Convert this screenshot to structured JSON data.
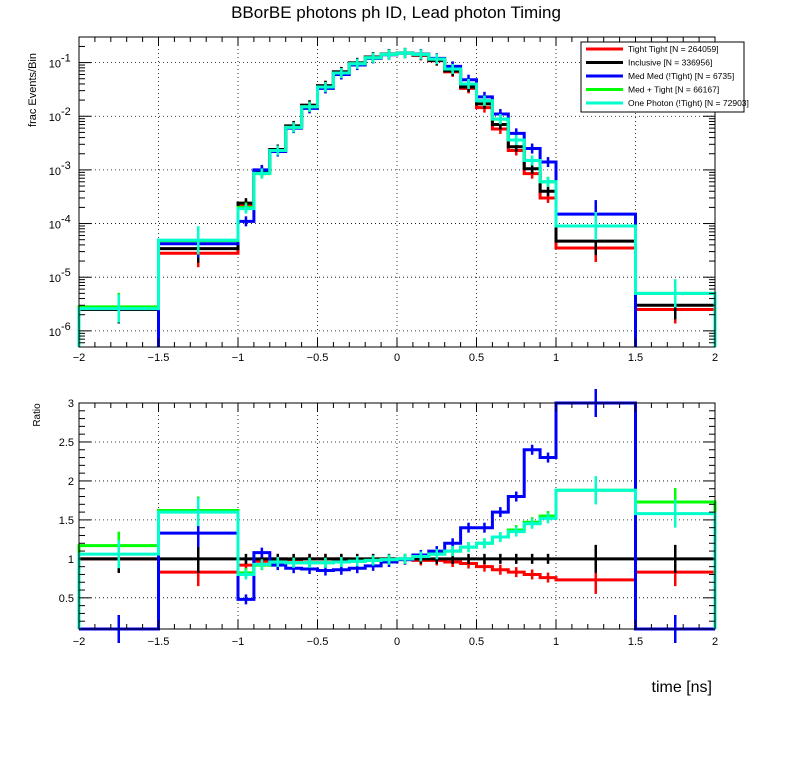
{
  "chart_data": [
    {
      "type": "histogram",
      "title": "BBorBE photons ph ID, Lead photon Timing",
      "ylabel": "frac Events/Bin",
      "xlabel": "",
      "xlim": [
        -2,
        2
      ],
      "ylim": [
        5e-07,
        0.3
      ],
      "yscale": "log",
      "grid": true,
      "legend_position": "top-right",
      "bin_edges": [
        -2,
        -1.5,
        -1,
        -0.9,
        -0.8,
        -0.7,
        -0.6,
        -0.5,
        -0.4,
        -0.3,
        -0.2,
        -0.1,
        0,
        0.1,
        0.2,
        0.3,
        0.4,
        0.5,
        0.6,
        0.7,
        0.8,
        0.9,
        1,
        1.5,
        2
      ],
      "series": [
        {
          "name": "Tight Tight [N = 264059]",
          "color": "#ff0000",
          "values": [
            2.5e-06,
            2.8e-05,
            0.00022,
            0.0009,
            0.0024,
            0.0065,
            0.016,
            0.037,
            0.067,
            0.098,
            0.126,
            0.144,
            0.15,
            0.136,
            0.108,
            0.067,
            0.033,
            0.0145,
            0.0058,
            0.0023,
            0.00085,
            0.0003,
            3.5e-05,
            2.5e-06
          ]
        },
        {
          "name": "Inclusive [N = 336956]",
          "color": "#000000",
          "values": [
            2.5e-06,
            3.4e-05,
            0.00024,
            0.00093,
            0.0024,
            0.0066,
            0.016,
            0.037,
            0.067,
            0.099,
            0.127,
            0.145,
            0.152,
            0.139,
            0.11,
            0.07,
            0.035,
            0.017,
            0.007,
            0.0027,
            0.00105,
            0.0004,
            4.7e-05,
            3e-06
          ]
        },
        {
          "name": "Med Med (!Tight) [N = 6735]",
          "color": "#0000ff",
          "values": [
            null,
            4.2e-05,
            0.00011,
            0.001,
            0.0022,
            0.006,
            0.014,
            0.033,
            0.06,
            0.09,
            0.12,
            0.14,
            0.15,
            0.145,
            0.12,
            0.085,
            0.048,
            0.023,
            0.011,
            0.0048,
            0.0025,
            0.0014,
            0.00015,
            null
          ]
        },
        {
          "name": "Med + Tight [N = 66167]",
          "color": "#00ff00",
          "values": [
            2.8e-06,
            4.8e-05,
            0.0002,
            0.00085,
            0.0023,
            0.0062,
            0.015,
            0.035,
            0.064,
            0.095,
            0.123,
            0.142,
            0.15,
            0.142,
            0.116,
            0.076,
            0.04,
            0.0195,
            0.0088,
            0.0036,
            0.0015,
            0.0006,
            9e-05,
            5e-06
          ]
        },
        {
          "name": "One Photon (!Tight) [N = 72903]",
          "color": "#00ffcc",
          "values": [
            2.6e-06,
            4.9e-05,
            0.00019,
            0.00086,
            0.0023,
            0.0062,
            0.015,
            0.035,
            0.064,
            0.095,
            0.123,
            0.142,
            0.15,
            0.142,
            0.116,
            0.076,
            0.04,
            0.0195,
            0.0089,
            0.0036,
            0.0015,
            0.0006,
            9e-05,
            5e-06
          ]
        }
      ],
      "tick_labels_x": [
        "−2",
        "−1.5",
        "−1",
        "−0.5",
        "0",
        "0.5",
        "1",
        "1.5",
        "2"
      ],
      "tick_labels_y": [
        "10",
        "10",
        "10",
        "10",
        "10",
        "10"
      ],
      "tick_exponents_y": [
        "-6",
        "-5",
        "-4",
        "-3",
        "-2",
        "-1"
      ]
    },
    {
      "type": "histogram",
      "title": "",
      "ylabel": "Ratio",
      "xlabel": "time [ns]",
      "xlim": [
        -2,
        2
      ],
      "ylim": [
        0.1,
        3
      ],
      "yscale": "linear",
      "grid": true,
      "bin_edges": [
        -2,
        -1.5,
        -1,
        -0.9,
        -0.8,
        -0.7,
        -0.6,
        -0.5,
        -0.4,
        -0.3,
        -0.2,
        -0.1,
        0,
        0.1,
        0.2,
        0.3,
        0.4,
        0.5,
        0.6,
        0.7,
        0.8,
        0.9,
        1,
        1.5,
        2
      ],
      "series": [
        {
          "name": "Tight Tight [N = 264059]",
          "color": "#ff0000",
          "values": [
            1,
            0.83,
            0.92,
            0.97,
            1.0,
            0.99,
            1.0,
            1.0,
            1.0,
            0.99,
            0.99,
            0.99,
            0.99,
            0.98,
            0.98,
            0.96,
            0.94,
            0.9,
            0.86,
            0.83,
            0.8,
            0.76,
            0.73,
            0.83
          ]
        },
        {
          "name": "Inclusive [N = 336956]",
          "color": "#000000",
          "values": [
            1,
            1,
            1,
            1,
            1,
            1,
            1,
            1,
            1,
            1,
            1,
            1,
            1,
            1,
            1,
            1,
            1,
            1,
            1,
            1,
            1,
            1,
            1,
            1
          ]
        },
        {
          "name": "Med Med (!Tight) [N = 6735]",
          "color": "#0000ff",
          "values": [
            0,
            1.33,
            0.48,
            1.08,
            0.92,
            0.88,
            0.87,
            0.85,
            0.86,
            0.88,
            0.91,
            0.96,
            0.99,
            1.05,
            1.1,
            1.2,
            1.4,
            1.4,
            1.6,
            1.8,
            2.4,
            2.3,
            3.0,
            0
          ]
        },
        {
          "name": "Med + Tight [N = 66167]",
          "color": "#00ff00",
          "values": [
            1.17,
            1.62,
            0.82,
            0.92,
            0.96,
            0.95,
            0.95,
            0.95,
            0.96,
            0.97,
            0.98,
            0.99,
            1.0,
            1.03,
            1.06,
            1.1,
            1.15,
            1.2,
            1.28,
            1.37,
            1.47,
            1.55,
            1.88,
            1.73
          ]
        },
        {
          "name": "One Photon (!Tight) [N = 72903]",
          "color": "#00ffcc",
          "values": [
            1.06,
            1.6,
            0.8,
            0.93,
            0.96,
            0.95,
            0.95,
            0.95,
            0.96,
            0.97,
            0.98,
            0.99,
            1.0,
            1.03,
            1.06,
            1.1,
            1.15,
            1.2,
            1.28,
            1.35,
            1.45,
            1.52,
            1.88,
            1.58
          ]
        }
      ],
      "tick_labels_x": [
        "−2",
        "−1.5",
        "−1",
        "−0.5",
        "0",
        "0.5",
        "1",
        "1.5",
        "2"
      ],
      "tick_labels_y": [
        "0.5",
        "1",
        "1.5",
        "2",
        "2.5",
        "3"
      ]
    }
  ]
}
